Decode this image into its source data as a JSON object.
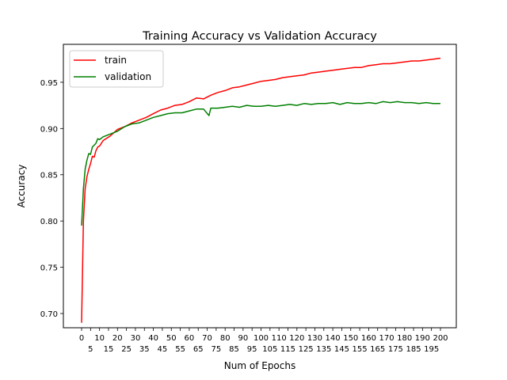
{
  "chart_data": {
    "type": "line",
    "title": "Training Accuracy vs Validation Accuracy",
    "xlabel": "Num of Epochs",
    "ylabel": "Accuracy",
    "xlim": [
      -10,
      210
    ],
    "ylim": [
      0.6846,
      0.991
    ],
    "grid": false,
    "legend_placement": "top-left",
    "x_ticks": [
      0,
      5,
      10,
      15,
      20,
      25,
      30,
      35,
      40,
      45,
      50,
      55,
      60,
      65,
      70,
      75,
      80,
      85,
      90,
      95,
      100,
      105,
      110,
      115,
      120,
      125,
      130,
      135,
      140,
      145,
      150,
      155,
      160,
      165,
      170,
      175,
      180,
      185,
      190,
      195,
      200
    ],
    "y_ticks": [
      "0.70",
      "0.75",
      "0.80",
      "0.85",
      "0.90",
      "0.95"
    ],
    "x": [
      0,
      1,
      2,
      3,
      4,
      5,
      6,
      7,
      8,
      9,
      10,
      12,
      16,
      20,
      24,
      28,
      32,
      36,
      40,
      44,
      48,
      52,
      56,
      60,
      64,
      68,
      71,
      72,
      76,
      80,
      84,
      88,
      92,
      96,
      100,
      104,
      108,
      112,
      116,
      120,
      124,
      128,
      132,
      136,
      140,
      144,
      148,
      152,
      156,
      160,
      164,
      168,
      172,
      176,
      180,
      184,
      188,
      192,
      196,
      200
    ],
    "series": [
      {
        "name": "train",
        "color": "#ff0000",
        "values": [
          0.69,
          0.8,
          0.835,
          0.848,
          0.856,
          0.862,
          0.87,
          0.869,
          0.876,
          0.88,
          0.881,
          0.887,
          0.892,
          0.899,
          0.902,
          0.906,
          0.909,
          0.912,
          0.916,
          0.92,
          0.922,
          0.925,
          0.926,
          0.929,
          0.933,
          0.932,
          0.935,
          0.936,
          0.939,
          0.941,
          0.944,
          0.945,
          0.947,
          0.949,
          0.951,
          0.952,
          0.953,
          0.955,
          0.956,
          0.957,
          0.958,
          0.96,
          0.961,
          0.962,
          0.963,
          0.964,
          0.965,
          0.966,
          0.966,
          0.968,
          0.969,
          0.97,
          0.97,
          0.971,
          0.972,
          0.973,
          0.973,
          0.974,
          0.975,
          0.976
        ]
      },
      {
        "name": "validation",
        "color": "#008000",
        "values": [
          0.795,
          0.835,
          0.856,
          0.866,
          0.873,
          0.872,
          0.88,
          0.882,
          0.884,
          0.889,
          0.888,
          0.891,
          0.894,
          0.897,
          0.902,
          0.905,
          0.906,
          0.909,
          0.912,
          0.914,
          0.916,
          0.917,
          0.917,
          0.919,
          0.921,
          0.921,
          0.914,
          0.922,
          0.922,
          0.923,
          0.924,
          0.923,
          0.925,
          0.924,
          0.924,
          0.925,
          0.924,
          0.925,
          0.926,
          0.925,
          0.927,
          0.926,
          0.927,
          0.927,
          0.928,
          0.926,
          0.928,
          0.927,
          0.927,
          0.928,
          0.927,
          0.929,
          0.928,
          0.929,
          0.928,
          0.928,
          0.927,
          0.928,
          0.927,
          0.927
        ]
      }
    ]
  }
}
